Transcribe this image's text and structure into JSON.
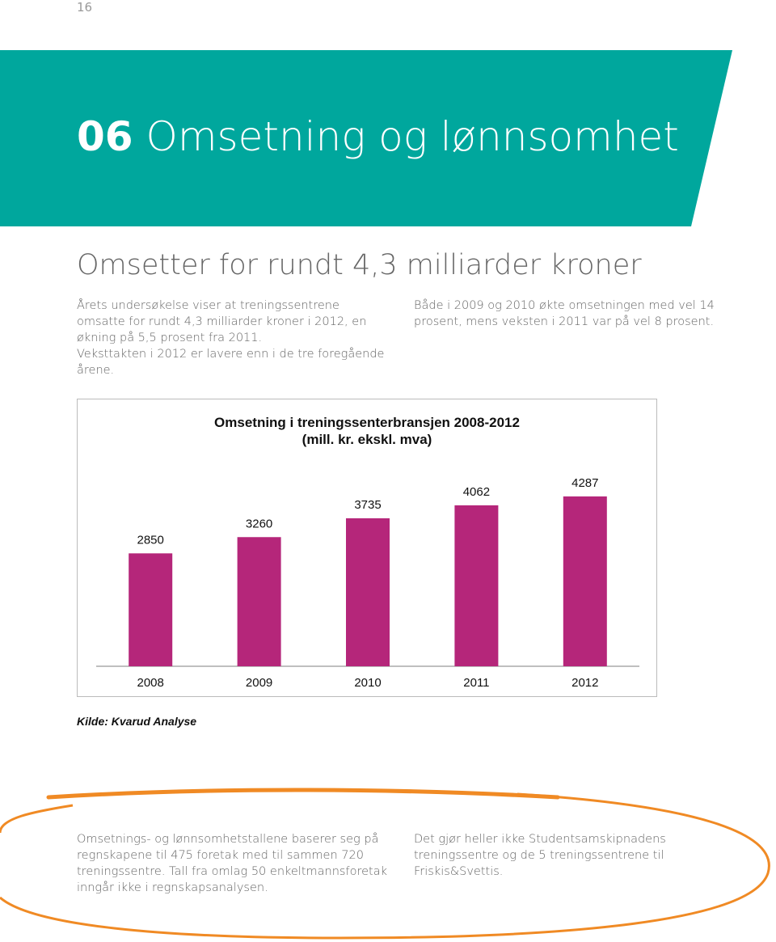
{
  "page_number": "16",
  "header": {
    "number": "06",
    "title": "Omsetning og lønnsomhet"
  },
  "heading": "Omsetter for rundt 4,3 milliarder kroner",
  "intro": {
    "left": [
      "Årets undersøkelse viser at treningssentrene omsatte for rundt 4,3 milliarder kroner i 2012, en økning på 5,5 prosent fra 2011.",
      "Veksttakten i 2012 er lavere enn i de tre foregående årene."
    ],
    "right": "Både i 2009 og 2010 økte omsetningen med vel 14 prosent, mens veksten i 2011 var på vel 8 prosent."
  },
  "chart_data": {
    "type": "bar",
    "title": "Omsetning i treningssenterbransjen 2008-2012 (mill. kr. ekskl. mva)",
    "categories": [
      "2008",
      "2009",
      "2010",
      "2011",
      "2012"
    ],
    "values": [
      2850,
      3260,
      3735,
      4062,
      4287
    ],
    "color": "#b5267a"
  },
  "source": "Kilde: Kvarud Analyse",
  "footer": {
    "left": "Omsetnings- og lønnsomhetstallene baserer seg på regnskapene til 475 foretak med til sammen 720 treningssentre. Tall fra omlag 50 enkeltmannsforetak inngår ikke i regnskapsanalysen.",
    "right": "Det gjør heller ikke Studentsamskipnadens treningssentre og de 5 treningssentrene til Friskis&Svettis."
  }
}
